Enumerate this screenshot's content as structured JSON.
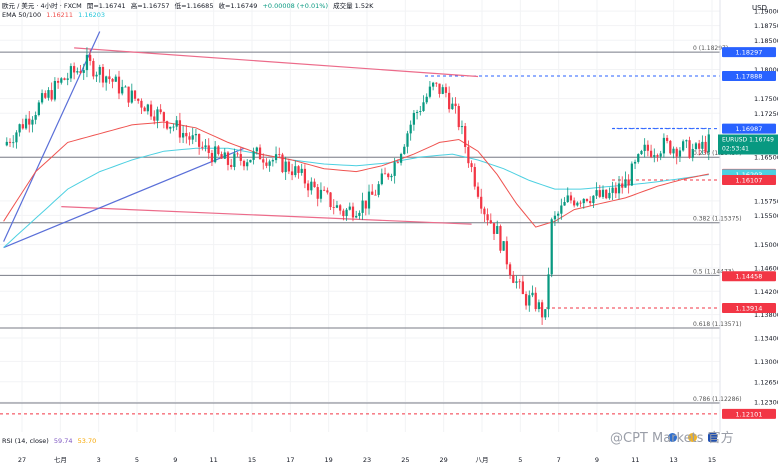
{
  "header": {
    "symbol": "欧元 / 美元 · 4小时 · FXCM",
    "open": "開=1.16741",
    "high": "高=1.16757",
    "low": "低=1.16685",
    "close": "收=1.16749",
    "change": "+0.00008 (+0.01%)",
    "volume": "成交量 1.52K",
    "ema_label": "EMA 50/100",
    "ema50": "1.16211",
    "ema100": "1.16203"
  },
  "price_axis": {
    "currency": "USD"
  },
  "rsi": {
    "label": "RSI (14, close)",
    "value1": "59.74",
    "value2": "53.70"
  },
  "watermark": "@CPT Markets 官方",
  "footer_icons": [
    "us-flag-icon",
    "eu-flag-icon",
    "lock-icon"
  ],
  "colors": {
    "bull": "#089981",
    "bear": "#f23645",
    "ema50": "#ef5350",
    "ema100": "#4dd0e1",
    "trend_red": "#e91e63",
    "trend_blue": "#3f51b5",
    "dashed_blue": "#2962ff",
    "dashed_red": "#f23645"
  },
  "chart_data": {
    "type": "candlestick",
    "y_range": [
      1.1179,
      1.1919
    ],
    "y_ticks": [
      {
        "value": 1.19,
        "label": "1.19000"
      },
      {
        "value": 1.1875,
        "label": "1.18750"
      },
      {
        "value": 1.185,
        "label": "1.18500"
      },
      {
        "value": 1.18,
        "label": "1.18000"
      },
      {
        "value": 1.175,
        "label": "1.17500"
      },
      {
        "value": 1.1725,
        "label": "1.17250"
      },
      {
        "value": 1.165,
        "label": "1.16500"
      },
      {
        "value": 1.1575,
        "label": "1.15750"
      },
      {
        "value": 1.155,
        "label": "1.15500"
      },
      {
        "value": 1.15,
        "label": "1.15000"
      },
      {
        "value": 1.146,
        "label": "1.14600"
      },
      {
        "value": 1.142,
        "label": "1.14200"
      },
      {
        "value": 1.138,
        "label": "1.13800"
      },
      {
        "value": 1.134,
        "label": "1.13400"
      },
      {
        "value": 1.13,
        "label": "1.13000"
      },
      {
        "value": 1.1265,
        "label": "1.12650"
      },
      {
        "value": 1.123,
        "label": "1.12300"
      }
    ],
    "x_labels": [
      "27",
      "七月",
      "3",
      "5",
      "9",
      "11",
      "15",
      "17",
      "19",
      "23",
      "25",
      "29",
      "八月",
      "5",
      "7",
      "9",
      "11",
      "13",
      "15"
    ],
    "fib_levels": [
      {
        "ratio": "0",
        "value": 1.18297
      },
      {
        "ratio": "0.236",
        "value": 1.16497
      },
      {
        "ratio": "0.382",
        "value": 1.15375
      },
      {
        "ratio": "0.5",
        "value": 1.14473
      },
      {
        "ratio": "0.618",
        "value": 1.13571
      },
      {
        "ratio": "0.786",
        "value": 1.12286
      }
    ],
    "fib_text": [
      "0 (1.18297)",
      "0.236 (1.16497)",
      "0.382 (1.15375)",
      "0.5 (1.14473)",
      "0.618 (1.13571)",
      "0.786 (1.12286)"
    ],
    "price_badges": [
      {
        "value": 1.18297,
        "text": "1.18297",
        "style": "blue"
      },
      {
        "value": 1.17888,
        "text": "1.17888",
        "style": "blue"
      },
      {
        "value": 1.16987,
        "text": "1.16987",
        "style": "blue"
      },
      {
        "value": 1.16749,
        "text": "1.16749",
        "style": "current"
      },
      {
        "value": 1.16211,
        "text": "1.16211",
        "style": "red"
      },
      {
        "value": 1.16203,
        "text": "1.16203",
        "style": "cyan"
      },
      {
        "value": 1.16107,
        "text": "1.16107",
        "style": "red"
      },
      {
        "value": 1.14458,
        "text": "1.14458",
        "style": "red"
      },
      {
        "value": 1.13914,
        "text": "1.13914",
        "style": "red"
      },
      {
        "value": 1.12101,
        "text": "1.12101",
        "style": "red"
      }
    ],
    "current_price": {
      "symbol": "EURUSD",
      "price": "1.16749",
      "countdown": "02:53:41"
    },
    "close_path": [
      [
        0,
        1.167
      ],
      [
        8,
        1.172
      ],
      [
        18,
        1.178
      ],
      [
        26,
        1.181
      ],
      [
        32,
        1.179
      ],
      [
        38,
        1.176
      ],
      [
        44,
        1.174
      ],
      [
        54,
        1.17
      ],
      [
        62,
        1.1665
      ],
      [
        70,
        1.164
      ],
      [
        80,
        1.1655
      ],
      [
        90,
        1.163
      ],
      [
        98,
        1.159
      ],
      [
        106,
        1.1555
      ],
      [
        114,
        1.1575
      ],
      [
        122,
        1.164
      ],
      [
        128,
        1.172
      ],
      [
        134,
        1.177
      ],
      [
        138,
        1.176
      ],
      [
        142,
        1.171
      ],
      [
        146,
        1.163
      ],
      [
        150,
        1.156
      ],
      [
        154,
        1.152
      ],
      [
        158,
        1.146
      ],
      [
        162,
        1.141
      ],
      [
        166,
        1.14
      ],
      [
        169,
        1.1375
      ],
      [
        171,
        1.1535
      ],
      [
        176,
        1.1575
      ],
      [
        182,
        1.1585
      ],
      [
        188,
        1.158
      ],
      [
        194,
        1.1605
      ],
      [
        200,
        1.166
      ],
      [
        206,
        1.167
      ],
      [
        212,
        1.1665
      ],
      [
        216,
        1.166
      ],
      [
        220,
        1.1675
      ]
    ],
    "ema50": [
      [
        0,
        1.154
      ],
      [
        10,
        1.1625
      ],
      [
        20,
        1.1675
      ],
      [
        30,
        1.169
      ],
      [
        40,
        1.1705
      ],
      [
        50,
        1.171
      ],
      [
        60,
        1.17
      ],
      [
        70,
        1.1675
      ],
      [
        80,
        1.1655
      ],
      [
        90,
        1.1645
      ],
      [
        100,
        1.163
      ],
      [
        110,
        1.1625
      ],
      [
        118,
        1.1635
      ],
      [
        128,
        1.1655
      ],
      [
        136,
        1.1675
      ],
      [
        142,
        1.168
      ],
      [
        148,
        1.166
      ],
      [
        154,
        1.162
      ],
      [
        160,
        1.157
      ],
      [
        166,
        1.153
      ],
      [
        172,
        1.154
      ],
      [
        178,
        1.156
      ],
      [
        186,
        1.157
      ],
      [
        194,
        1.158
      ],
      [
        204,
        1.16
      ],
      [
        212,
        1.1612
      ],
      [
        220,
        1.1621
      ]
    ],
    "ema100": [
      [
        0,
        1.1495
      ],
      [
        10,
        1.1545
      ],
      [
        20,
        1.1595
      ],
      [
        30,
        1.1625
      ],
      [
        40,
        1.1645
      ],
      [
        50,
        1.166
      ],
      [
        60,
        1.1665
      ],
      [
        70,
        1.1665
      ],
      [
        80,
        1.1655
      ],
      [
        90,
        1.1645
      ],
      [
        100,
        1.1638
      ],
      [
        110,
        1.1635
      ],
      [
        120,
        1.164
      ],
      [
        130,
        1.165
      ],
      [
        140,
        1.1655
      ],
      [
        148,
        1.1645
      ],
      [
        156,
        1.163
      ],
      [
        164,
        1.161
      ],
      [
        172,
        1.1595
      ],
      [
        180,
        1.1595
      ],
      [
        190,
        1.16
      ],
      [
        200,
        1.1605
      ],
      [
        210,
        1.1612
      ],
      [
        220,
        1.162
      ]
    ],
    "trendlines": [
      {
        "name": "upper-channel-line",
        "color": "red",
        "from": [
          22,
          1.1837
        ],
        "to": [
          148,
          1.1788
        ]
      },
      {
        "name": "lower-channel-line",
        "color": "red",
        "from": [
          18,
          1.1565
        ],
        "to": [
          146,
          1.1535
        ]
      },
      {
        "name": "rising-support-line",
        "color": "blue",
        "from": [
          0,
          1.1505
        ],
        "to": [
          30,
          1.1865
        ]
      },
      {
        "name": "rising-support-line-2",
        "color": "blue",
        "from": [
          0,
          1.1495
        ],
        "to": [
          75,
          1.1665
        ]
      }
    ],
    "resistance_box": {
      "from": [
        190,
        1.1699
      ],
      "to": [
        220,
        1.1612
      ]
    }
  }
}
